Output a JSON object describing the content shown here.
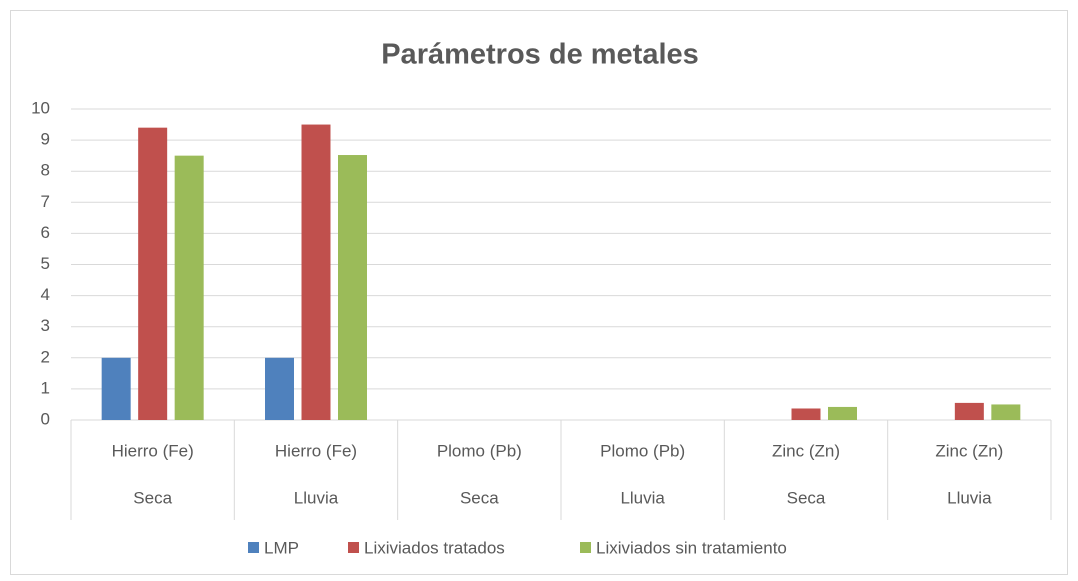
{
  "chart_data": {
    "type": "bar",
    "title": "Parámetros de metales",
    "categories": [
      "Hierro (Fe)",
      "Hierro (Fe)",
      "Plomo (Pb)",
      "Plomo (Pb)",
      "Zinc (Zn)",
      "Zinc (Zn)"
    ],
    "subcategories": [
      "Seca",
      "Lluvia",
      "Seca",
      "Lluvia",
      "Seca",
      "Lluvia"
    ],
    "series": [
      {
        "name": "LMP",
        "color": "#4f81bd",
        "values": [
          2,
          2,
          0,
          0,
          0,
          0
        ]
      },
      {
        "name": "Lixiviados tratados",
        "color": "#c0504d",
        "values": [
          9.4,
          9.5,
          0,
          0,
          0.37,
          0.55
        ]
      },
      {
        "name": "Lixiviados sin tratamiento",
        "color": "#9bbb59",
        "values": [
          8.5,
          8.52,
          0,
          0,
          0.42,
          0.5
        ]
      }
    ],
    "ylim": [
      0,
      10
    ],
    "yticks": [
      0,
      1,
      2,
      3,
      4,
      5,
      6,
      7,
      8,
      9,
      10
    ],
    "grid": true,
    "legend": "bottom"
  }
}
